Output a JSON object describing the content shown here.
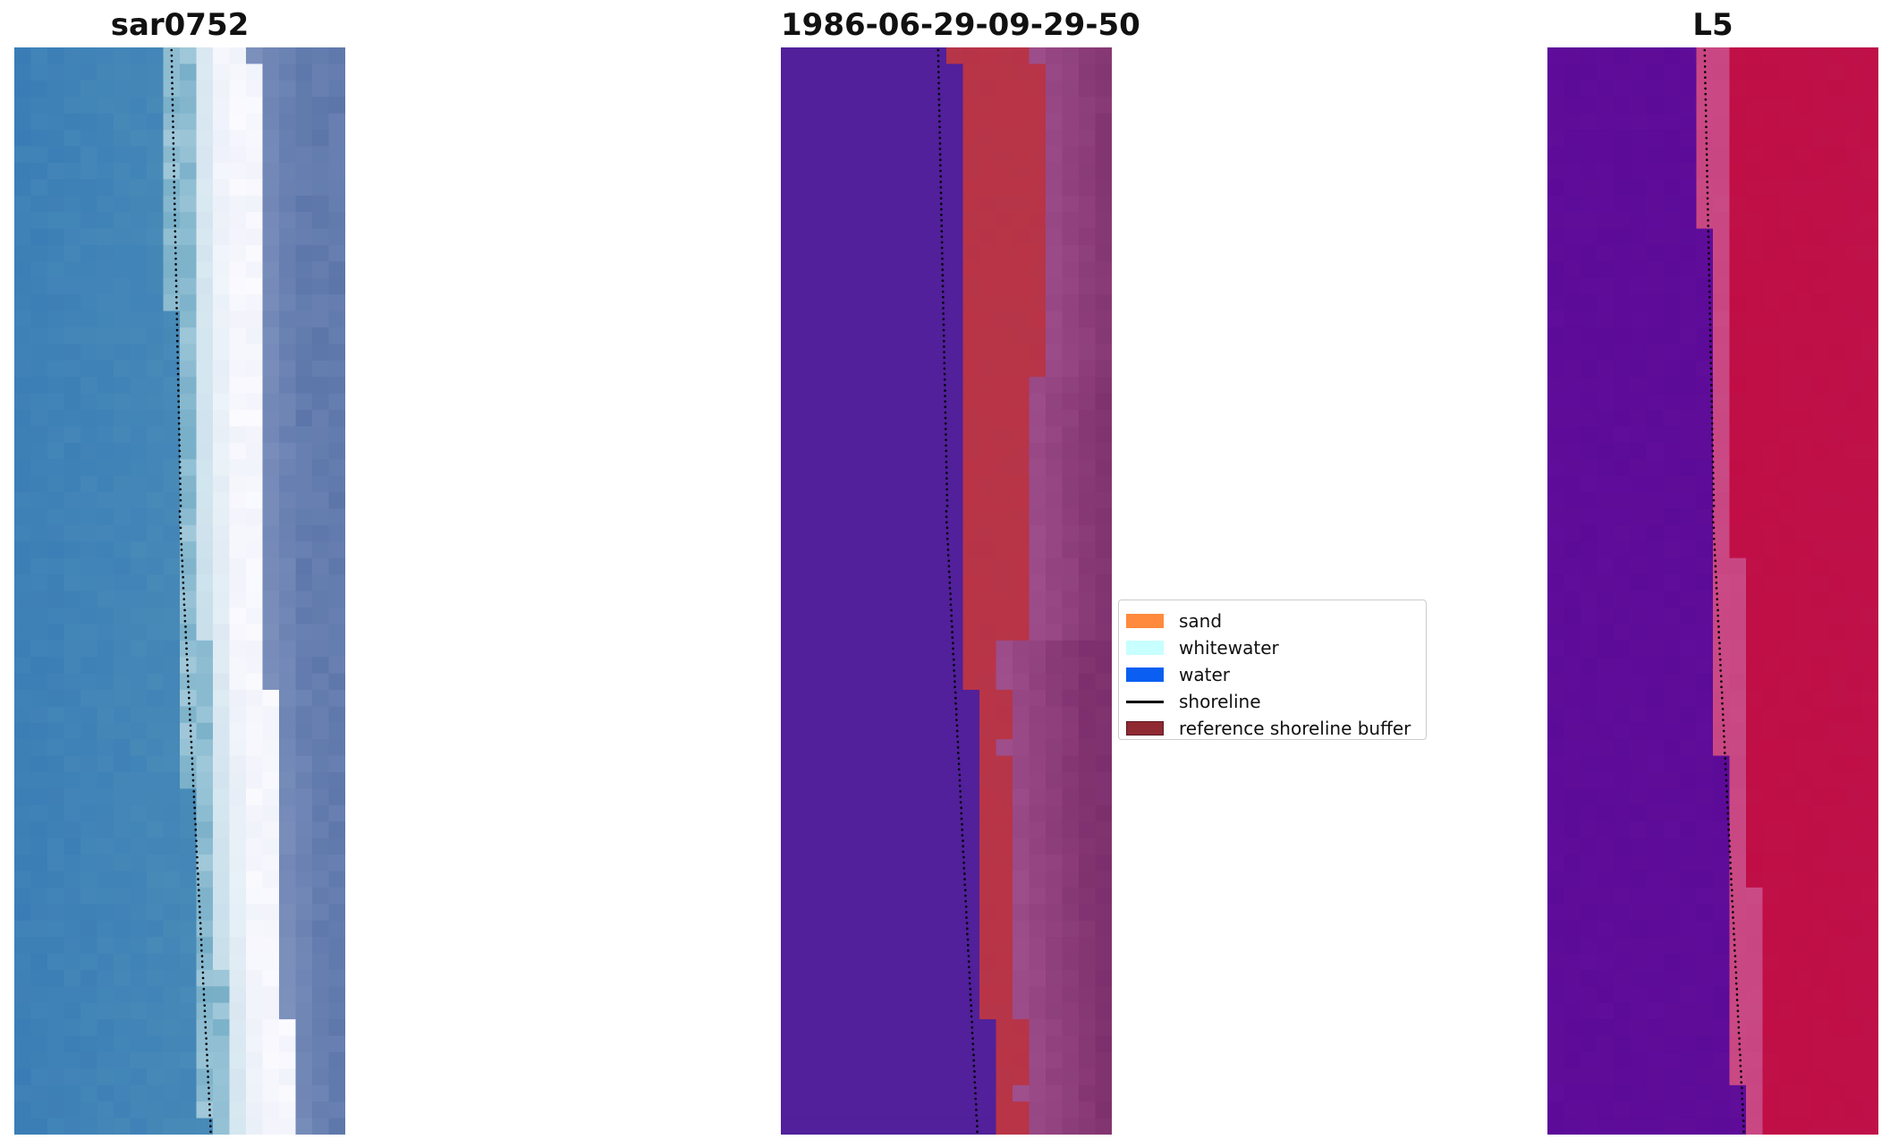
{
  "panels": [
    {
      "title": "sar0752"
    },
    {
      "title": "1986-06-29-09-29-50"
    },
    {
      "title": "L5"
    }
  ],
  "legend": {
    "items": [
      {
        "label": "sand",
        "color": "#ff8a3d"
      },
      {
        "label": "whitewater",
        "color": "#c8ffff"
      },
      {
        "label": "water",
        "color": "#0a5ff2"
      },
      {
        "label": "shoreline",
        "color": "#000000"
      },
      {
        "label": "reference shoreline buffer",
        "color": "#8f2a33"
      }
    ]
  },
  "colors": {
    "water_rgb": "#3c7db6",
    "water_class": "#51209a",
    "sand_class_overlay": "#b93446",
    "land_class": "#7a2d6a",
    "water_index": "#5c0a98",
    "land_index": "#c10d45"
  }
}
